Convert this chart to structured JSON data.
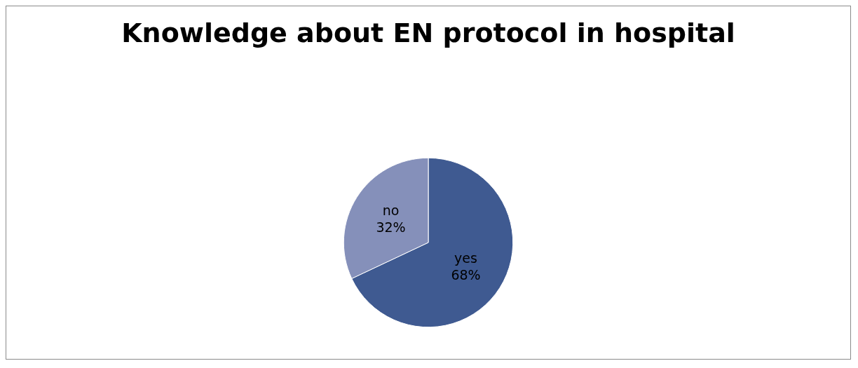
{
  "chart_data": {
    "type": "pie",
    "title": "Knowledge about EN protocol in hospital",
    "categories": [
      "yes",
      "no"
    ],
    "values": [
      68,
      32
    ],
    "value_labels": [
      "68%",
      "32%"
    ],
    "colors": [
      "#3f5a91",
      "#8590ba"
    ],
    "legend": false
  }
}
